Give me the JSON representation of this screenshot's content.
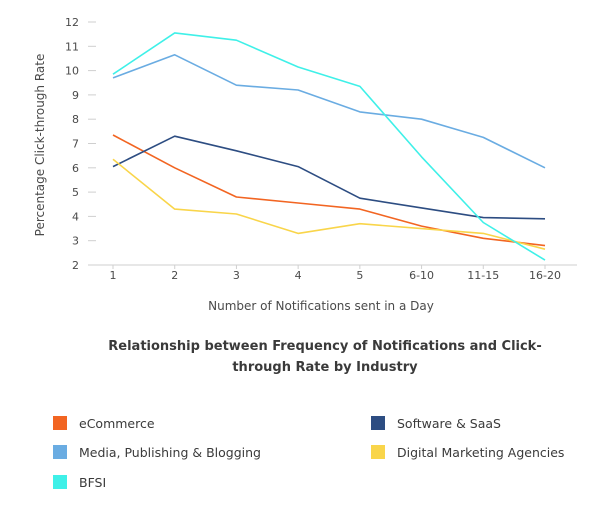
{
  "chart_data": {
    "type": "line",
    "title": "Relationship between Frequency of Notifications and Click-through Rate by Industry",
    "xlabel": "Number of Notifications sent in a Day",
    "ylabel": "Percentage Click-through Rate",
    "ylim": [
      2,
      12
    ],
    "yticks": [
      2,
      3,
      4,
      5,
      6,
      7,
      8,
      9,
      10,
      11,
      12
    ],
    "categories": [
      "1",
      "2",
      "3",
      "4",
      "5",
      "6-10",
      "11-15",
      "16-20"
    ],
    "grid": false,
    "legend_position": "bottom",
    "series": [
      {
        "name": "eCommerce",
        "color": "#f26522",
        "values": [
          7.35,
          6.0,
          4.8,
          4.55,
          4.3,
          3.6,
          3.1,
          2.8
        ]
      },
      {
        "name": "Software & SaaS",
        "color": "#2d4d82",
        "values": [
          6.05,
          7.3,
          6.7,
          6.05,
          4.75,
          4.35,
          3.95,
          3.9
        ]
      },
      {
        "name": "Media, Publishing & Blogging",
        "color": "#6aace2",
        "values": [
          9.7,
          10.65,
          9.4,
          9.2,
          8.3,
          8.0,
          7.25,
          6.0
        ]
      },
      {
        "name": "Digital Marketing Agencies",
        "color": "#f9d54a",
        "values": [
          6.35,
          4.3,
          4.1,
          3.3,
          3.7,
          3.5,
          3.3,
          2.65
        ]
      },
      {
        "name": "BFSI",
        "color": "#3ff0e8",
        "values": [
          9.85,
          11.55,
          11.25,
          10.15,
          9.35,
          6.45,
          3.75,
          2.2
        ]
      }
    ]
  },
  "legend": {
    "left": [
      "eCommerce",
      "Media, Publishing &  Blogging",
      "BFSI"
    ],
    "right": [
      "Software & SaaS",
      "Digital Marketing Agencies"
    ]
  }
}
